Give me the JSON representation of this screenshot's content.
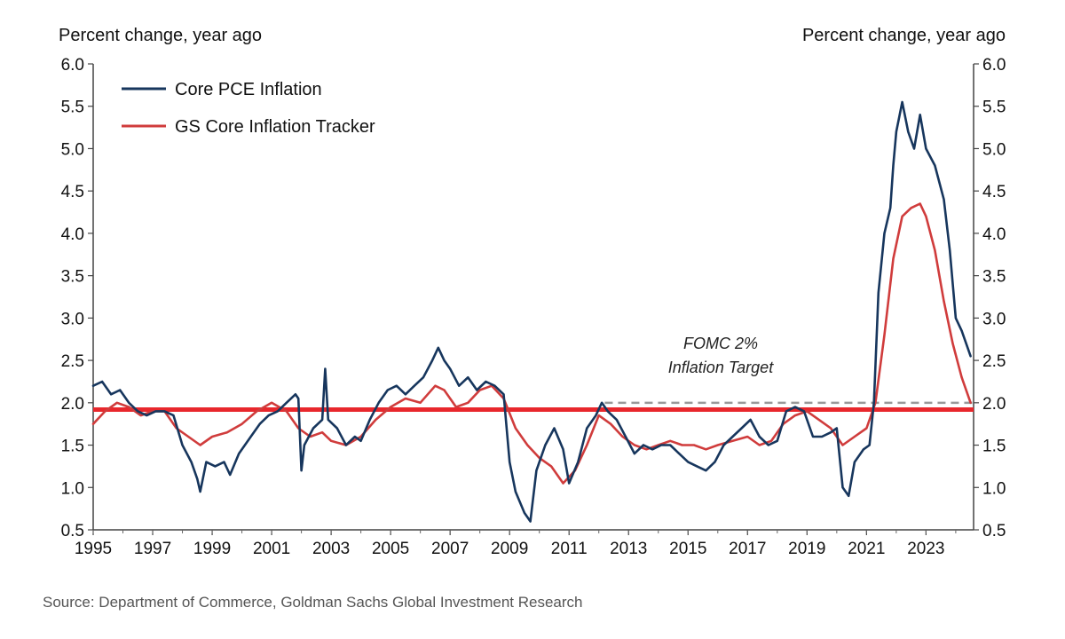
{
  "chart_data": {
    "type": "line",
    "left_axis_title": "Percent change, year ago",
    "right_axis_title": "Percent change, year ago",
    "ylim": [
      0.5,
      6.0
    ],
    "y_ticks": [
      "6.0",
      "5.5",
      "5.0",
      "4.5",
      "4.0",
      "3.5",
      "3.0",
      "2.5",
      "2.0",
      "1.5",
      "1.0",
      "0.5"
    ],
    "xlim": [
      1995,
      2024.6
    ],
    "x_ticks": [
      "1995",
      "1997",
      "1999",
      "2001",
      "2003",
      "2005",
      "2007",
      "2009",
      "2011",
      "2013",
      "2015",
      "2017",
      "2019",
      "2021",
      "2023"
    ],
    "legend_position": "top-left",
    "series": [
      {
        "name": "Core PCE Inflation",
        "color": "#17365d",
        "points": [
          [
            1995.0,
            2.2
          ],
          [
            1995.3,
            2.25
          ],
          [
            1995.6,
            2.1
          ],
          [
            1995.9,
            2.15
          ],
          [
            1996.2,
            2.0
          ],
          [
            1996.5,
            1.9
          ],
          [
            1996.8,
            1.85
          ],
          [
            1997.1,
            1.9
          ],
          [
            1997.4,
            1.9
          ],
          [
            1997.7,
            1.85
          ],
          [
            1998.0,
            1.5
          ],
          [
            1998.3,
            1.3
          ],
          [
            1998.5,
            1.1
          ],
          [
            1998.6,
            0.95
          ],
          [
            1998.8,
            1.3
          ],
          [
            1999.1,
            1.25
          ],
          [
            1999.4,
            1.3
          ],
          [
            1999.6,
            1.15
          ],
          [
            1999.9,
            1.4
          ],
          [
            2000.3,
            1.6
          ],
          [
            2000.6,
            1.75
          ],
          [
            2000.9,
            1.85
          ],
          [
            2001.2,
            1.9
          ],
          [
            2001.5,
            2.0
          ],
          [
            2001.8,
            2.1
          ],
          [
            2001.9,
            2.05
          ],
          [
            2002.0,
            1.2
          ],
          [
            2002.1,
            1.5
          ],
          [
            2002.4,
            1.7
          ],
          [
            2002.7,
            1.8
          ],
          [
            2002.8,
            2.4
          ],
          [
            2002.9,
            1.8
          ],
          [
            2003.2,
            1.7
          ],
          [
            2003.5,
            1.5
          ],
          [
            2003.8,
            1.6
          ],
          [
            2004.0,
            1.55
          ],
          [
            2004.3,
            1.8
          ],
          [
            2004.6,
            2.0
          ],
          [
            2004.9,
            2.15
          ],
          [
            2005.2,
            2.2
          ],
          [
            2005.5,
            2.1
          ],
          [
            2005.8,
            2.2
          ],
          [
            2006.1,
            2.3
          ],
          [
            2006.4,
            2.5
          ],
          [
            2006.6,
            2.65
          ],
          [
            2006.8,
            2.5
          ],
          [
            2007.0,
            2.4
          ],
          [
            2007.3,
            2.2
          ],
          [
            2007.6,
            2.3
          ],
          [
            2007.9,
            2.15
          ],
          [
            2008.2,
            2.25
          ],
          [
            2008.5,
            2.2
          ],
          [
            2008.8,
            2.1
          ],
          [
            2009.0,
            1.3
          ],
          [
            2009.2,
            0.95
          ],
          [
            2009.5,
            0.7
          ],
          [
            2009.7,
            0.6
          ],
          [
            2009.9,
            1.2
          ],
          [
            2010.2,
            1.5
          ],
          [
            2010.5,
            1.7
          ],
          [
            2010.8,
            1.45
          ],
          [
            2011.0,
            1.05
          ],
          [
            2011.3,
            1.3
          ],
          [
            2011.6,
            1.7
          ],
          [
            2011.9,
            1.85
          ],
          [
            2012.1,
            2.0
          ],
          [
            2012.3,
            1.9
          ],
          [
            2012.6,
            1.8
          ],
          [
            2012.9,
            1.6
          ],
          [
            2013.2,
            1.4
          ],
          [
            2013.5,
            1.5
          ],
          [
            2013.8,
            1.45
          ],
          [
            2014.1,
            1.5
          ],
          [
            2014.4,
            1.5
          ],
          [
            2014.7,
            1.4
          ],
          [
            2015.0,
            1.3
          ],
          [
            2015.3,
            1.25
          ],
          [
            2015.6,
            1.2
          ],
          [
            2015.9,
            1.3
          ],
          [
            2016.2,
            1.5
          ],
          [
            2016.5,
            1.6
          ],
          [
            2016.8,
            1.7
          ],
          [
            2017.1,
            1.8
          ],
          [
            2017.4,
            1.6
          ],
          [
            2017.7,
            1.5
          ],
          [
            2018.0,
            1.55
          ],
          [
            2018.3,
            1.9
          ],
          [
            2018.6,
            1.95
          ],
          [
            2018.9,
            1.9
          ],
          [
            2019.2,
            1.6
          ],
          [
            2019.5,
            1.6
          ],
          [
            2019.8,
            1.65
          ],
          [
            2020.0,
            1.7
          ],
          [
            2020.2,
            1.0
          ],
          [
            2020.4,
            0.9
          ],
          [
            2020.6,
            1.3
          ],
          [
            2020.9,
            1.45
          ],
          [
            2021.1,
            1.5
          ],
          [
            2021.25,
            2.0
          ],
          [
            2021.4,
            3.3
          ],
          [
            2021.6,
            4.0
          ],
          [
            2021.8,
            4.3
          ],
          [
            2021.9,
            4.8
          ],
          [
            2022.0,
            5.2
          ],
          [
            2022.2,
            5.55
          ],
          [
            2022.4,
            5.2
          ],
          [
            2022.6,
            5.0
          ],
          [
            2022.8,
            5.4
          ],
          [
            2023.0,
            5.0
          ],
          [
            2023.3,
            4.8
          ],
          [
            2023.6,
            4.4
          ],
          [
            2023.8,
            3.8
          ],
          [
            2024.0,
            3.0
          ],
          [
            2024.2,
            2.85
          ],
          [
            2024.4,
            2.65
          ],
          [
            2024.5,
            2.55
          ]
        ]
      },
      {
        "name": "GS Core Inflation Tracker",
        "color": "#d03c3c",
        "points": [
          [
            1995.0,
            1.75
          ],
          [
            1995.4,
            1.9
          ],
          [
            1995.8,
            2.0
          ],
          [
            1996.2,
            1.95
          ],
          [
            1996.6,
            1.85
          ],
          [
            1997.0,
            1.9
          ],
          [
            1997.4,
            1.9
          ],
          [
            1997.8,
            1.7
          ],
          [
            1998.2,
            1.6
          ],
          [
            1998.6,
            1.5
          ],
          [
            1999.0,
            1.6
          ],
          [
            1999.5,
            1.65
          ],
          [
            2000.0,
            1.75
          ],
          [
            2000.5,
            1.9
          ],
          [
            2001.0,
            2.0
          ],
          [
            2001.5,
            1.9
          ],
          [
            2001.9,
            1.7
          ],
          [
            2002.3,
            1.6
          ],
          [
            2002.7,
            1.65
          ],
          [
            2003.0,
            1.55
          ],
          [
            2003.5,
            1.5
          ],
          [
            2004.0,
            1.6
          ],
          [
            2004.5,
            1.8
          ],
          [
            2005.0,
            1.95
          ],
          [
            2005.5,
            2.05
          ],
          [
            2006.0,
            2.0
          ],
          [
            2006.5,
            2.2
          ],
          [
            2006.8,
            2.15
          ],
          [
            2007.2,
            1.95
          ],
          [
            2007.6,
            2.0
          ],
          [
            2008.0,
            2.15
          ],
          [
            2008.4,
            2.2
          ],
          [
            2008.8,
            2.05
          ],
          [
            2009.2,
            1.7
          ],
          [
            2009.6,
            1.5
          ],
          [
            2010.0,
            1.35
          ],
          [
            2010.4,
            1.25
          ],
          [
            2010.8,
            1.05
          ],
          [
            2011.2,
            1.2
          ],
          [
            2011.6,
            1.5
          ],
          [
            2012.0,
            1.85
          ],
          [
            2012.4,
            1.75
          ],
          [
            2012.8,
            1.6
          ],
          [
            2013.2,
            1.5
          ],
          [
            2013.6,
            1.45
          ],
          [
            2014.0,
            1.5
          ],
          [
            2014.4,
            1.55
          ],
          [
            2014.8,
            1.5
          ],
          [
            2015.2,
            1.5
          ],
          [
            2015.6,
            1.45
          ],
          [
            2016.0,
            1.5
          ],
          [
            2016.5,
            1.55
          ],
          [
            2017.0,
            1.6
          ],
          [
            2017.4,
            1.5
          ],
          [
            2017.8,
            1.55
          ],
          [
            2018.2,
            1.75
          ],
          [
            2018.6,
            1.85
          ],
          [
            2019.0,
            1.9
          ],
          [
            2019.4,
            1.8
          ],
          [
            2019.8,
            1.7
          ],
          [
            2020.2,
            1.5
          ],
          [
            2020.6,
            1.6
          ],
          [
            2021.0,
            1.7
          ],
          [
            2021.3,
            2.0
          ],
          [
            2021.6,
            2.8
          ],
          [
            2021.9,
            3.7
          ],
          [
            2022.2,
            4.2
          ],
          [
            2022.5,
            4.3
          ],
          [
            2022.8,
            4.35
          ],
          [
            2023.0,
            4.2
          ],
          [
            2023.3,
            3.8
          ],
          [
            2023.6,
            3.2
          ],
          [
            2023.9,
            2.7
          ],
          [
            2024.2,
            2.3
          ],
          [
            2024.4,
            2.1
          ],
          [
            2024.5,
            2.0
          ]
        ]
      }
    ],
    "reference_lines": [
      {
        "value": 1.92,
        "color": "#e8272c",
        "style": "solid",
        "label": ""
      },
      {
        "value": 2.0,
        "color": "#999999",
        "style": "dashed",
        "x_start": 2012.2,
        "x_end": 2024.6
      }
    ],
    "annotations": [
      {
        "text_line1": "FOMC 2%",
        "text_line2": "Inflation Target",
        "color": "#222222"
      }
    ],
    "source": "Source: Department of Commerce, Goldman Sachs Global Investment Research"
  }
}
